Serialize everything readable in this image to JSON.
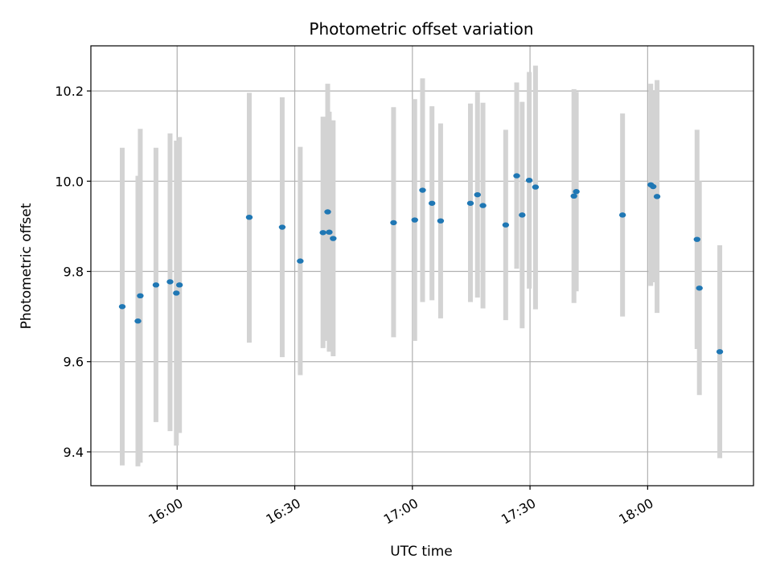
{
  "chart_data": {
    "type": "scatter",
    "title": "Photometric offset variation",
    "xlabel": "UTC time",
    "ylabel": "Photometric offset",
    "xlim": [
      "15:38",
      "18:27"
    ],
    "ylim": [
      9.325,
      10.3
    ],
    "xticks": [
      "16:00",
      "16:30",
      "17:00",
      "17:30",
      "18:00"
    ],
    "yticks": [
      9.4,
      9.6,
      9.8,
      10.0,
      10.2
    ],
    "grid": true,
    "colors": {
      "point": "#1f77b4",
      "errorbar": "#d3d3d3",
      "grid": "#b0b0b0"
    },
    "points": [
      {
        "t": "15:46:00",
        "y": 9.722,
        "lo": 9.37,
        "hi": 10.074
      },
      {
        "t": "15:50:00",
        "y": 9.69,
        "lo": 9.368,
        "hi": 10.012
      },
      {
        "t": "15:50:36",
        "y": 9.746,
        "lo": 9.376,
        "hi": 10.116
      },
      {
        "t": "15:54:36",
        "y": 9.77,
        "lo": 9.466,
        "hi": 10.074
      },
      {
        "t": "15:58:12",
        "y": 9.777,
        "lo": 9.446,
        "hi": 10.106
      },
      {
        "t": "15:59:48",
        "y": 9.752,
        "lo": 9.414,
        "hi": 10.09
      },
      {
        "t": "16:00:36",
        "y": 9.77,
        "lo": 9.442,
        "hi": 10.098
      },
      {
        "t": "16:18:24",
        "y": 9.92,
        "lo": 9.642,
        "hi": 10.196
      },
      {
        "t": "16:26:48",
        "y": 9.898,
        "lo": 9.61,
        "hi": 10.186
      },
      {
        "t": "16:31:24",
        "y": 9.823,
        "lo": 9.57,
        "hi": 10.076
      },
      {
        "t": "16:37:12",
        "y": 9.886,
        "lo": 9.63,
        "hi": 10.143
      },
      {
        "t": "16:38:24",
        "y": 9.932,
        "lo": 9.646,
        "hi": 10.216
      },
      {
        "t": "16:38:48",
        "y": 9.887,
        "lo": 9.622,
        "hi": 10.154
      },
      {
        "t": "16:39:48",
        "y": 9.873,
        "lo": 9.612,
        "hi": 10.135
      },
      {
        "t": "16:55:12",
        "y": 9.908,
        "lo": 9.654,
        "hi": 10.164
      },
      {
        "t": "17:00:36",
        "y": 9.914,
        "lo": 9.646,
        "hi": 10.182
      },
      {
        "t": "17:02:36",
        "y": 9.98,
        "lo": 9.732,
        "hi": 10.228
      },
      {
        "t": "17:05:00",
        "y": 9.951,
        "lo": 9.736,
        "hi": 10.166
      },
      {
        "t": "17:07:12",
        "y": 9.912,
        "lo": 9.696,
        "hi": 10.128
      },
      {
        "t": "17:14:48",
        "y": 9.951,
        "lo": 9.732,
        "hi": 10.172
      },
      {
        "t": "17:16:36",
        "y": 9.97,
        "lo": 9.742,
        "hi": 10.198
      },
      {
        "t": "17:18:00",
        "y": 9.946,
        "lo": 9.718,
        "hi": 10.174
      },
      {
        "t": "17:23:48",
        "y": 9.903,
        "lo": 9.692,
        "hi": 10.114
      },
      {
        "t": "17:26:36",
        "y": 10.012,
        "lo": 9.806,
        "hi": 10.219
      },
      {
        "t": "17:28:00",
        "y": 9.925,
        "lo": 9.674,
        "hi": 10.176
      },
      {
        "t": "17:29:48",
        "y": 10.002,
        "lo": 9.762,
        "hi": 10.242
      },
      {
        "t": "17:31:24",
        "y": 9.987,
        "lo": 9.716,
        "hi": 10.256
      },
      {
        "t": "17:41:12",
        "y": 9.967,
        "lo": 9.73,
        "hi": 10.204
      },
      {
        "t": "17:41:48",
        "y": 9.977,
        "lo": 9.756,
        "hi": 10.198
      },
      {
        "t": "17:53:36",
        "y": 9.925,
        "lo": 9.7,
        "hi": 10.15
      },
      {
        "t": "18:00:48",
        "y": 9.992,
        "lo": 9.768,
        "hi": 10.216
      },
      {
        "t": "18:01:24",
        "y": 9.988,
        "lo": 9.776,
        "hi": 10.2
      },
      {
        "t": "18:02:24",
        "y": 9.966,
        "lo": 9.708,
        "hi": 10.224
      },
      {
        "t": "18:12:36",
        "y": 9.871,
        "lo": 9.628,
        "hi": 10.114
      },
      {
        "t": "18:13:12",
        "y": 9.763,
        "lo": 9.526,
        "hi": 10.0
      },
      {
        "t": "18:18:24",
        "y": 9.622,
        "lo": 9.386,
        "hi": 9.858
      }
    ]
  }
}
